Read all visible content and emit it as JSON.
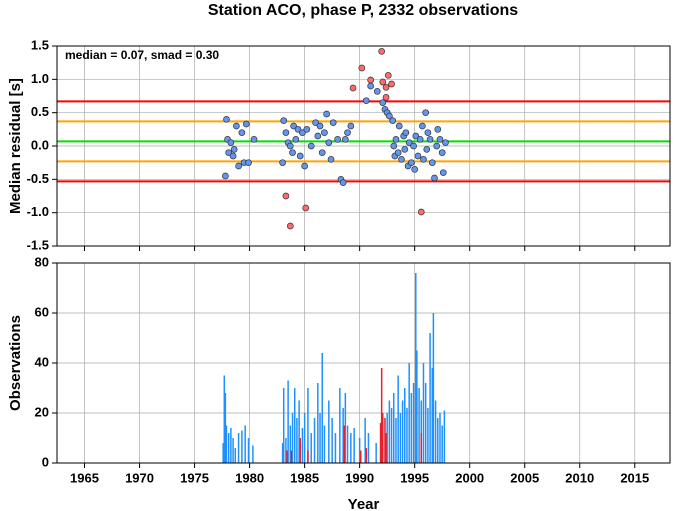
{
  "chart_data": [
    {
      "type": "scatter",
      "title": "Station ACO, phase P, 2332 observations",
      "ylabel": "Median residual [s]",
      "annotation": "median = 0.07, smad = 0.30",
      "xlim": [
        1962.5,
        2018.2
      ],
      "ylim": [
        -1.5,
        1.5
      ],
      "xticks": [
        1965,
        1970,
        1975,
        1980,
        1985,
        1990,
        1995,
        2000,
        2005,
        2010,
        2015
      ],
      "yticks": [
        -1.5,
        {
          "value": -1,
          "label": "-1.0"
        },
        -0.5,
        {
          "value": 0,
          "label": "0.0"
        },
        0.5,
        {
          "value": 1,
          "label": "1.0"
        },
        1.5
      ],
      "grid": true,
      "hlines": [
        {
          "value": 0.67,
          "color": "#ff0000"
        },
        {
          "value": 0.37,
          "color": "#ffa500"
        },
        {
          "value": 0.07,
          "color": "#00e000"
        },
        {
          "value": -0.23,
          "color": "#ffa500"
        },
        {
          "value": -0.53,
          "color": "#ff0000"
        }
      ],
      "series": [
        {
          "color": "#6495ed",
          "x": [
            1977.8,
            1977.9,
            1978.0,
            1978.1,
            1978.3,
            1978.5,
            1978.6,
            1978.8,
            1979.0,
            1979.3,
            1979.5,
            1979.7,
            1979.9,
            1980.4,
            1983.0,
            1983.1,
            1983.3,
            1983.5,
            1983.7,
            1983.9,
            1984.0,
            1984.2,
            1984.4,
            1984.6,
            1984.8,
            1985.0,
            1985.2,
            1985.6,
            1986.0,
            1986.2,
            1986.4,
            1986.6,
            1986.8,
            1987.0,
            1987.2,
            1987.4,
            1987.6,
            1988.0,
            1988.3,
            1988.5,
            1988.7,
            1988.9,
            1989.2,
            1990.6,
            1991.0,
            1991.6,
            1992.1,
            1992.3,
            1992.5,
            1992.7,
            1993.0,
            1993.1,
            1993.2,
            1993.3,
            1993.5,
            1993.6,
            1993.8,
            1994.0,
            1994.1,
            1994.2,
            1994.4,
            1994.5,
            1994.7,
            1994.9,
            1995.0,
            1995.1,
            1995.3,
            1995.5,
            1995.7,
            1995.8,
            1996.0,
            1996.1,
            1996.2,
            1996.4,
            1996.6,
            1996.8,
            1997.0,
            1997.1,
            1997.3,
            1997.5,
            1997.6,
            1997.8
          ],
          "values": [
            -0.45,
            0.4,
            0.1,
            -0.1,
            0.05,
            -0.15,
            -0.05,
            0.3,
            -0.3,
            0.2,
            -0.25,
            0.33,
            -0.25,
            0.1,
            -0.25,
            0.38,
            0.2,
            0.05,
            0.0,
            -0.1,
            0.3,
            0.1,
            0.25,
            -0.15,
            0.2,
            -0.3,
            0.25,
            0.0,
            0.35,
            0.15,
            0.3,
            -0.1,
            0.2,
            0.48,
            0.05,
            -0.2,
            0.35,
            0.1,
            -0.5,
            -0.55,
            0.1,
            0.2,
            0.3,
            0.68,
            0.9,
            0.82,
            0.65,
            0.55,
            0.5,
            0.45,
            0.38,
            0.0,
            -0.15,
            0.1,
            -0.1,
            0.3,
            -0.2,
            0.15,
            -0.05,
            0.2,
            -0.3,
            0.05,
            -0.25,
            0.0,
            -0.35,
            0.15,
            -0.15,
            0.1,
            0.3,
            -0.2,
            0.5,
            -0.05,
            0.2,
            0.1,
            -0.25,
            -0.48,
            0.0,
            0.25,
            0.1,
            -0.1,
            -0.4,
            0.05
          ]
        },
        {
          "color": "#ff6a6a",
          "x": [
            1983.3,
            1983.7,
            1985.1,
            1989.4,
            1990.2,
            1991.0,
            1992.0,
            1992.1,
            1992.4,
            1992.6,
            1992.4,
            1992.9,
            1995.6
          ],
          "values": [
            -0.75,
            -1.2,
            -0.93,
            0.87,
            1.17,
            0.99,
            1.42,
            0.96,
            0.88,
            1.06,
            0.73,
            0.93,
            -0.99
          ]
        }
      ]
    },
    {
      "type": "bar",
      "ylabel": "Observations",
      "xlabel": "Year",
      "xlim": [
        1962.5,
        2018.2
      ],
      "ylim": [
        0,
        80
      ],
      "xticks": [
        1965,
        1970,
        1975,
        1980,
        1985,
        1990,
        1995,
        2000,
        2005,
        2010,
        2015
      ],
      "yticks": [
        0,
        20,
        40,
        60,
        80
      ],
      "grid": true,
      "series": [
        {
          "color": "#1e90ff",
          "x": [
            1977.6,
            1977.7,
            1977.8,
            1977.9,
            1978.1,
            1978.3,
            1978.5,
            1978.7,
            1979.0,
            1979.3,
            1979.6,
            1979.9,
            1980.3,
            1983.0,
            1983.1,
            1983.3,
            1983.5,
            1983.7,
            1983.9,
            1984.1,
            1984.3,
            1984.5,
            1984.8,
            1985.0,
            1985.3,
            1985.6,
            1985.9,
            1986.2,
            1986.4,
            1986.6,
            1986.8,
            1987.2,
            1987.5,
            1987.8,
            1988.2,
            1988.5,
            1988.7,
            1988.9,
            1989.2,
            1989.5,
            1990.0,
            1990.5,
            1990.8,
            1991.5,
            1992.5,
            1992.7,
            1992.9,
            1993.1,
            1993.3,
            1993.5,
            1993.7,
            1993.9,
            1994.1,
            1994.3,
            1994.5,
            1994.7,
            1994.9,
            1995.1,
            1995.2,
            1995.4,
            1995.6,
            1995.8,
            1996.0,
            1996.2,
            1996.4,
            1996.6,
            1996.7,
            1996.9,
            1997.1,
            1997.3,
            1997.5,
            1997.7
          ],
          "values": [
            8,
            35,
            28,
            15,
            12,
            14,
            10,
            6,
            12,
            13,
            15,
            10,
            7,
            8,
            30,
            10,
            33,
            15,
            20,
            30,
            18,
            25,
            14,
            20,
            30,
            12,
            18,
            32,
            20,
            44,
            15,
            25,
            18,
            12,
            30,
            22,
            28,
            15,
            12,
            14,
            10,
            18,
            12,
            8,
            20,
            25,
            22,
            28,
            18,
            35,
            20,
            25,
            30,
            22,
            40,
            28,
            32,
            76,
            45,
            30,
            25,
            40,
            32,
            22,
            52,
            38,
            60,
            25,
            18,
            20,
            15,
            21
          ]
        },
        {
          "color": "#e8202a",
          "x": [
            1983.4,
            1983.8,
            1984.6,
            1985.3,
            1988.6,
            1990.1,
            1990.6,
            1991.9,
            1992.0,
            1992.1,
            1992.3,
            1992.4,
            1995.6
          ],
          "values": [
            5,
            5,
            10,
            5,
            15,
            5,
            6,
            16,
            38,
            20,
            18,
            12,
            12
          ]
        }
      ]
    }
  ]
}
